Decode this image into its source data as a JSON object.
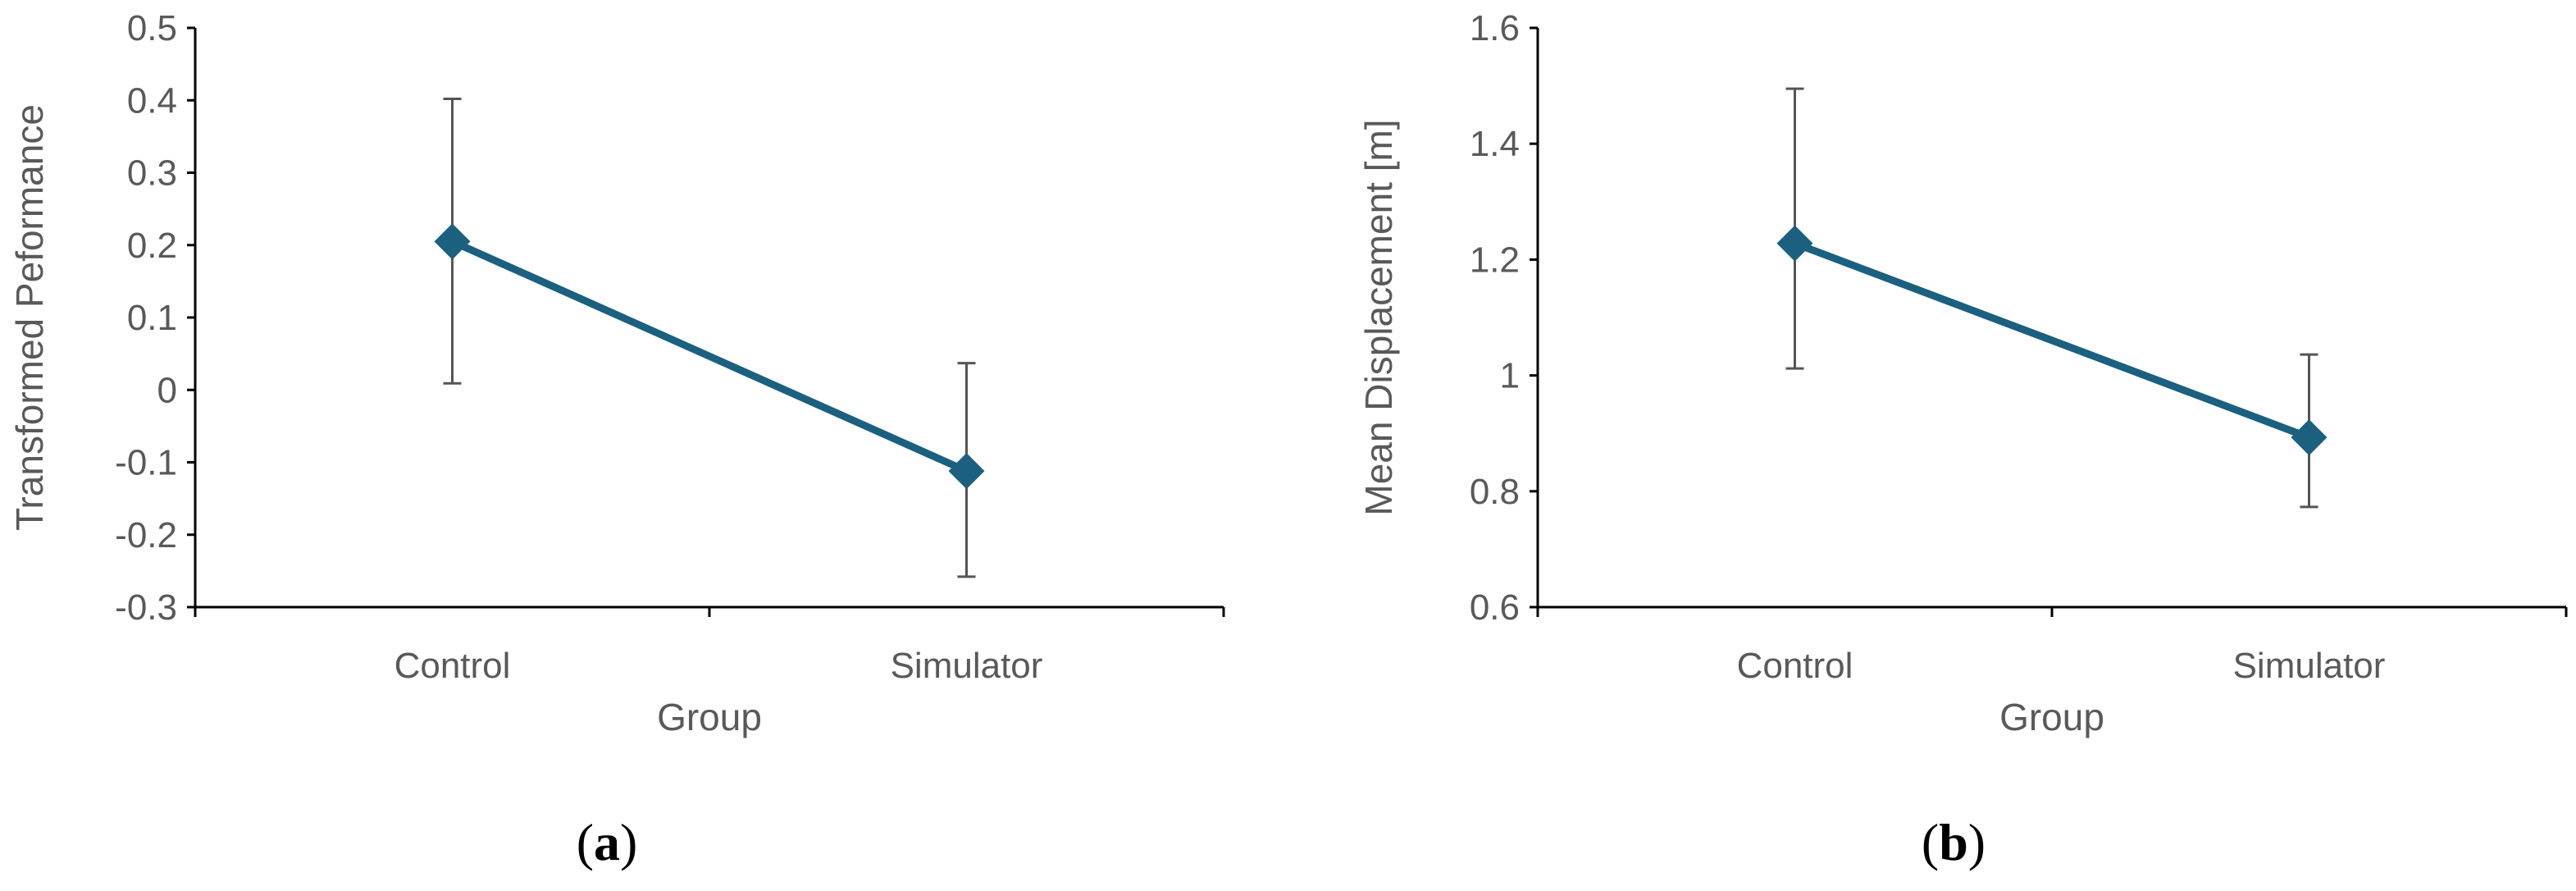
{
  "colors": {
    "series": "#1b607f",
    "axis": "#000000",
    "error_bar": "#555555",
    "text": "#595959"
  },
  "chart_data": [
    {
      "type": "line",
      "panel_label": "a",
      "categories": [
        "Control",
        "Simulator"
      ],
      "series": [
        {
          "values": [
            0.205,
            -0.112
          ],
          "error_upper": [
            0.402,
            0.037
          ],
          "error_lower": [
            0.009,
            -0.258
          ],
          "marker": "diamond"
        }
      ],
      "xlabel": "Group",
      "ylabel": "Transformed Peformance",
      "ylim": [
        -0.3,
        0.5
      ],
      "yticks": [
        "0.5",
        "0.4",
        "0.3",
        "0.2",
        "0.1",
        "0",
        "-0.1",
        "-0.2",
        "-0.3"
      ],
      "grid": false
    },
    {
      "type": "line",
      "panel_label": "b",
      "categories": [
        "Control",
        "Simulator"
      ],
      "series": [
        {
          "values": [
            1.228,
            0.893
          ],
          "error_upper": [
            1.495,
            1.036
          ],
          "error_lower": [
            1.012,
            0.773
          ],
          "marker": "diamond"
        }
      ],
      "xlabel": "Group",
      "ylabel": "Mean Displacement [m]",
      "ylim": [
        0.6,
        1.6
      ],
      "yticks": [
        "1.6",
        "1.4",
        "1.2",
        "1",
        "0.8",
        "0.6"
      ],
      "grid": false
    }
  ]
}
